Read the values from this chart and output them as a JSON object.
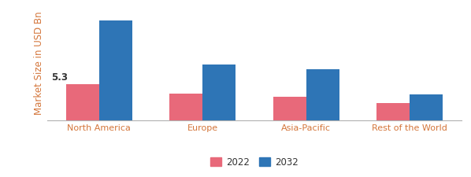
{
  "categories": [
    "North America",
    "Europe",
    "Asia-Pacific",
    "Rest of the World"
  ],
  "values_2022": [
    5.3,
    4.0,
    3.5,
    2.6
  ],
  "values_2032": [
    14.8,
    8.2,
    7.5,
    3.8
  ],
  "color_2022": "#e8697a",
  "color_2032": "#2e75b6",
  "annotation_text": "5.3",
  "annotation_bar": 0,
  "ylabel": "Market Size in USD Bn",
  "legend_labels": [
    "2022",
    "2032"
  ],
  "bar_width": 0.32,
  "ylim": [
    0,
    17
  ],
  "tick_label_color": "#d4763b",
  "ylabel_color": "#d4763b",
  "annotation_color": "#333333",
  "background_color": "#ffffff",
  "annotation_fontsize": 8.5,
  "tick_fontsize": 8.0,
  "ylabel_fontsize": 8.5,
  "legend_fontsize": 8.5,
  "legend_label_color": "#2e75b6"
}
